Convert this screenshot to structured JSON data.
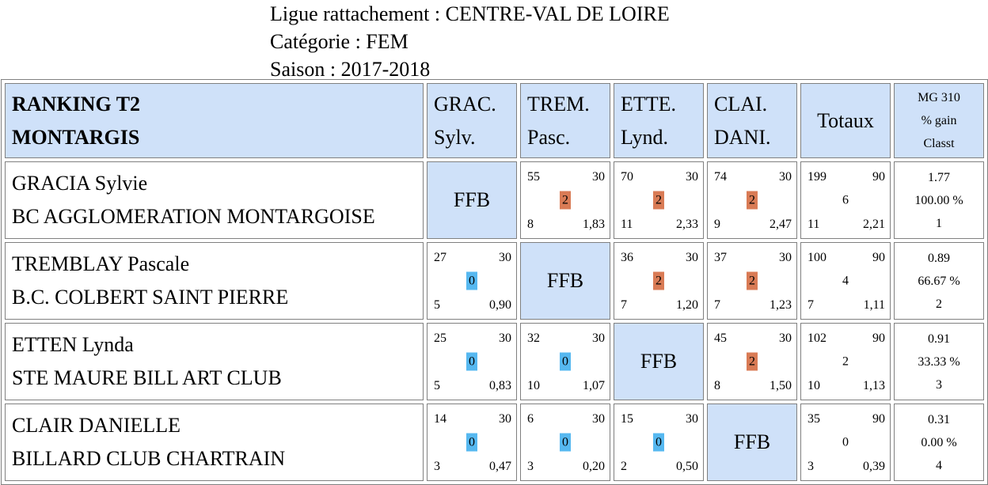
{
  "header": {
    "ligue": "Ligue rattachement : CENTRE-VAL DE LOIRE",
    "categorie": "Catégorie : FEM",
    "saison": "Saison : 2017-2018"
  },
  "table": {
    "title_line1": "RANKING T2",
    "title_line2": "MONTARGIS",
    "columns": [
      {
        "line1": "GRAC.",
        "line2": "Sylv."
      },
      {
        "line1": "TREM.",
        "line2": "Pasc."
      },
      {
        "line1": "ETTE.",
        "line2": "Lynd."
      },
      {
        "line1": "CLAI.",
        "line2": "DANI."
      }
    ],
    "totaux_label": "Totaux",
    "mg_header": {
      "line1": "MG 310",
      "line2": "% gain",
      "line3": "Classt"
    },
    "ffb_label": "FFB",
    "colors": {
      "header_bg": "#cfe1f9",
      "win_badge": "#d97b55",
      "loss_badge": "#56b8f0"
    },
    "rows": [
      {
        "name": "GRACIA Sylvie",
        "club": "BC AGGLOMERATION MONTARGOISE",
        "cells": [
          null,
          {
            "points": "55",
            "distance": "30",
            "result": "2",
            "innings": "8",
            "avg": "1,83"
          },
          {
            "points": "70",
            "distance": "30",
            "result": "2",
            "innings": "11",
            "avg": "2,33"
          },
          {
            "points": "74",
            "distance": "30",
            "result": "2",
            "innings": "9",
            "avg": "2,47"
          }
        ],
        "totals": {
          "points": "199",
          "distance": "90",
          "result": "6",
          "innings": "11",
          "avg": "2,21"
        },
        "stats": {
          "mg": "1.77",
          "pct": "100.00 %",
          "rank": "1"
        }
      },
      {
        "name": "TREMBLAY Pascale",
        "club": "B.C. COLBERT SAINT PIERRE",
        "cells": [
          {
            "points": "27",
            "distance": "30",
            "result": "0",
            "innings": "5",
            "avg": "0,90"
          },
          null,
          {
            "points": "36",
            "distance": "30",
            "result": "2",
            "innings": "7",
            "avg": "1,20"
          },
          {
            "points": "37",
            "distance": "30",
            "result": "2",
            "innings": "7",
            "avg": "1,23"
          }
        ],
        "totals": {
          "points": "100",
          "distance": "90",
          "result": "4",
          "innings": "7",
          "avg": "1,11"
        },
        "stats": {
          "mg": "0.89",
          "pct": "66.67 %",
          "rank": "2"
        }
      },
      {
        "name": "ETTEN Lynda",
        "club": "STE MAURE BILL ART CLUB",
        "cells": [
          {
            "points": "25",
            "distance": "30",
            "result": "0",
            "innings": "5",
            "avg": "0,83"
          },
          {
            "points": "32",
            "distance": "30",
            "result": "0",
            "innings": "10",
            "avg": "1,07"
          },
          null,
          {
            "points": "45",
            "distance": "30",
            "result": "2",
            "innings": "8",
            "avg": "1,50"
          }
        ],
        "totals": {
          "points": "102",
          "distance": "90",
          "result": "2",
          "innings": "10",
          "avg": "1,13"
        },
        "stats": {
          "mg": "0.91",
          "pct": "33.33 %",
          "rank": "3"
        }
      },
      {
        "name": "CLAIR DANIELLE",
        "club": "BILLARD CLUB CHARTRAIN",
        "cells": [
          {
            "points": "14",
            "distance": "30",
            "result": "0",
            "innings": "3",
            "avg": "0,47"
          },
          {
            "points": "6",
            "distance": "30",
            "result": "0",
            "innings": "3",
            "avg": "0,20"
          },
          {
            "points": "15",
            "distance": "30",
            "result": "0",
            "innings": "2",
            "avg": "0,50"
          },
          null
        ],
        "totals": {
          "points": "35",
          "distance": "90",
          "result": "0",
          "innings": "3",
          "avg": "0,39"
        },
        "stats": {
          "mg": "0.31",
          "pct": "0.00 %",
          "rank": "4"
        }
      }
    ]
  }
}
